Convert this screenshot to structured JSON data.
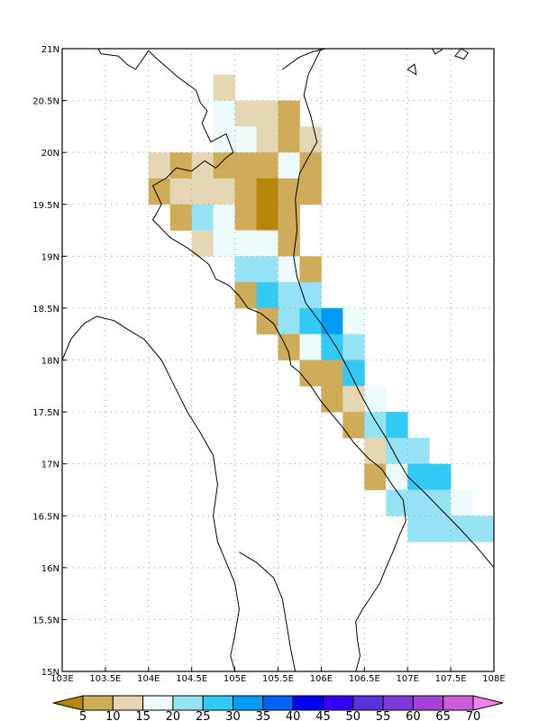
{
  "map": {
    "lon_range": [
      103,
      108
    ],
    "lat_range": [
      15,
      21
    ],
    "grid_lines": true,
    "x_ticks": [
      {
        "value": 103,
        "label": "103E"
      },
      {
        "value": 103.5,
        "label": "103.5E"
      },
      {
        "value": 104,
        "label": "104E"
      },
      {
        "value": 104.5,
        "label": "104.5E"
      },
      {
        "value": 105,
        "label": "105E"
      },
      {
        "value": 105.5,
        "label": "105.5E"
      },
      {
        "value": 106,
        "label": "106E"
      },
      {
        "value": 106.5,
        "label": "106.5E"
      },
      {
        "value": 107,
        "label": "107E"
      },
      {
        "value": 107.5,
        "label": "107.5E"
      },
      {
        "value": 108,
        "label": "108E"
      }
    ],
    "y_ticks": [
      {
        "value": 15,
        "label": "15N"
      },
      {
        "value": 15.5,
        "label": "15.5N"
      },
      {
        "value": 16,
        "label": "16N"
      },
      {
        "value": 16.5,
        "label": "16.5N"
      },
      {
        "value": 17,
        "label": "17N"
      },
      {
        "value": 17.5,
        "label": "17.5N"
      },
      {
        "value": 18,
        "label": "18N"
      },
      {
        "value": 18.5,
        "label": "18.5N"
      },
      {
        "value": 19,
        "label": "19N"
      },
      {
        "value": 19.5,
        "label": "19.5N"
      },
      {
        "value": 20,
        "label": "20N"
      },
      {
        "value": 20.5,
        "label": "20.5N"
      },
      {
        "value": 21,
        "label": "21N"
      }
    ],
    "cell_size_deg": 0.25
  },
  "chart_data": {
    "type": "heatmap",
    "levels": [
      5,
      10,
      15,
      20,
      25,
      30,
      35,
      40,
      45,
      50,
      55,
      60,
      65,
      70
    ],
    "level_labels": [
      "5",
      "10",
      "15",
      "20",
      "25",
      "30",
      "35",
      "40",
      "45",
      "50",
      "55",
      "60",
      "65",
      "70"
    ],
    "bin_colors": [
      "#b8860b",
      "#cfac5a",
      "#e6d7b4",
      "#eefbfd",
      "#96e3f6",
      "#33cbf6",
      "#009cf7",
      "#0063f8",
      "#0000f8",
      "#2e00f4",
      "#5b2fdc",
      "#8038d8",
      "#a540d8",
      "#cc5cd8",
      "#ef83ef"
    ],
    "cell_center_convention": "lon/lat of cell centre, 0.25 degree cells",
    "cells": [
      [
        104.875,
        20.625,
        2
      ],
      [
        104.875,
        20.375,
        3
      ],
      [
        105.125,
        20.375,
        2
      ],
      [
        105.375,
        20.375,
        2
      ],
      [
        105.625,
        20.375,
        1
      ],
      [
        104.875,
        20.125,
        3
      ],
      [
        105.125,
        20.125,
        3
      ],
      [
        105.375,
        20.125,
        2
      ],
      [
        105.625,
        20.125,
        1
      ],
      [
        105.875,
        20.125,
        2
      ],
      [
        104.125,
        19.875,
        2
      ],
      [
        104.375,
        19.875,
        1
      ],
      [
        104.625,
        19.875,
        2
      ],
      [
        104.875,
        19.875,
        1
      ],
      [
        105.125,
        19.875,
        1
      ],
      [
        105.375,
        19.875,
        1
      ],
      [
        105.625,
        19.875,
        3
      ],
      [
        105.875,
        19.875,
        1
      ],
      [
        104.125,
        19.625,
        1
      ],
      [
        104.375,
        19.625,
        2
      ],
      [
        104.625,
        19.625,
        2
      ],
      [
        104.875,
        19.625,
        2
      ],
      [
        105.125,
        19.625,
        1
      ],
      [
        105.375,
        19.625,
        0
      ],
      [
        105.625,
        19.625,
        1
      ],
      [
        105.875,
        19.625,
        1
      ],
      [
        104.375,
        19.375,
        1
      ],
      [
        104.625,
        19.375,
        4
      ],
      [
        104.875,
        19.375,
        3
      ],
      [
        105.125,
        19.375,
        1
      ],
      [
        105.375,
        19.375,
        0
      ],
      [
        105.625,
        19.375,
        1
      ],
      [
        104.625,
        19.125,
        2
      ],
      [
        104.875,
        19.125,
        3
      ],
      [
        105.125,
        19.125,
        3
      ],
      [
        105.375,
        19.125,
        3
      ],
      [
        105.625,
        19.125,
        1
      ],
      [
        105.125,
        18.875,
        4
      ],
      [
        105.375,
        18.875,
        4
      ],
      [
        105.625,
        18.875,
        3
      ],
      [
        105.875,
        18.875,
        1
      ],
      [
        105.125,
        18.625,
        1
      ],
      [
        105.375,
        18.625,
        5
      ],
      [
        105.625,
        18.625,
        4
      ],
      [
        105.875,
        18.625,
        4
      ],
      [
        105.375,
        18.375,
        1
      ],
      [
        105.625,
        18.375,
        4
      ],
      [
        105.875,
        18.375,
        5
      ],
      [
        106.125,
        18.375,
        6
      ],
      [
        106.375,
        18.375,
        3
      ],
      [
        105.625,
        18.125,
        1
      ],
      [
        105.875,
        18.125,
        3
      ],
      [
        106.125,
        18.125,
        5
      ],
      [
        106.375,
        18.125,
        4
      ],
      [
        105.875,
        17.875,
        1
      ],
      [
        106.125,
        17.875,
        1
      ],
      [
        106.375,
        17.875,
        5
      ],
      [
        106.125,
        17.625,
        1
      ],
      [
        106.375,
        17.625,
        2
      ],
      [
        106.625,
        17.625,
        3
      ],
      [
        106.375,
        17.375,
        1
      ],
      [
        106.625,
        17.375,
        4
      ],
      [
        106.875,
        17.375,
        5
      ],
      [
        106.625,
        17.125,
        2
      ],
      [
        106.875,
        17.125,
        4
      ],
      [
        107.125,
        17.125,
        4
      ],
      [
        106.625,
        16.875,
        1
      ],
      [
        106.875,
        16.875,
        3
      ],
      [
        107.125,
        16.875,
        5
      ],
      [
        107.375,
        16.875,
        5
      ],
      [
        106.875,
        16.625,
        4
      ],
      [
        107.125,
        16.625,
        4
      ],
      [
        107.375,
        16.625,
        4
      ],
      [
        107.625,
        16.625,
        3
      ],
      [
        107.125,
        16.375,
        4
      ],
      [
        107.375,
        16.375,
        4
      ],
      [
        107.625,
        16.375,
        4
      ],
      [
        107.875,
        16.375,
        4
      ]
    ]
  },
  "coastline": [
    [
      [
        103.35,
        21.1
      ],
      [
        103.45,
        20.95
      ],
      [
        103.65,
        20.93
      ],
      [
        103.75,
        20.85
      ],
      [
        103.85,
        20.8
      ],
      [
        104.0,
        20.98
      ],
      [
        104.1,
        20.9
      ],
      [
        104.35,
        20.72
      ],
      [
        104.55,
        20.6
      ],
      [
        104.6,
        20.48
      ],
      [
        104.68,
        20.4
      ],
      [
        104.62,
        20.28
      ],
      [
        104.72,
        20.1
      ],
      [
        104.9,
        20.18
      ],
      [
        104.98,
        20.0
      ],
      [
        104.9,
        19.95
      ],
      [
        104.78,
        19.85
      ],
      [
        104.65,
        19.92
      ],
      [
        104.5,
        19.82
      ],
      [
        104.32,
        19.85
      ],
      [
        104.2,
        19.75
      ],
      [
        104.05,
        19.68
      ],
      [
        104.15,
        19.5
      ],
      [
        104.05,
        19.35
      ],
      [
        104.25,
        19.18
      ],
      [
        104.45,
        19.08
      ],
      [
        104.58,
        19.0
      ],
      [
        104.7,
        18.92
      ],
      [
        104.78,
        18.78
      ],
      [
        104.93,
        18.72
      ],
      [
        105.05,
        18.62
      ],
      [
        105.15,
        18.5
      ],
      [
        105.3,
        18.45
      ],
      [
        105.45,
        18.35
      ],
      [
        105.55,
        18.2
      ],
      [
        105.62,
        18.08
      ],
      [
        105.65,
        17.95
      ],
      [
        105.75,
        17.88
      ],
      [
        105.88,
        17.75
      ],
      [
        106.0,
        17.6
      ],
      [
        106.12,
        17.48
      ],
      [
        106.25,
        17.35
      ],
      [
        106.38,
        17.2
      ],
      [
        106.55,
        17.05
      ],
      [
        106.7,
        16.95
      ],
      [
        106.82,
        16.8
      ],
      [
        106.95,
        16.65
      ],
      [
        106.98,
        16.45
      ],
      [
        106.9,
        16.3
      ],
      [
        106.83,
        16.15
      ],
      [
        106.75,
        16.0
      ],
      [
        106.68,
        15.85
      ],
      [
        106.6,
        15.75
      ],
      [
        106.48,
        15.6
      ],
      [
        106.4,
        15.48
      ],
      [
        106.42,
        15.3
      ],
      [
        106.45,
        15.15
      ],
      [
        106.4,
        15.0
      ]
    ],
    [
      [
        105.55,
        20.8
      ],
      [
        105.75,
        20.92
      ],
      [
        105.9,
        20.97
      ],
      [
        106.05,
        21.0
      ],
      [
        106.2,
        21.05
      ]
    ],
    [
      [
        106.0,
        21.0
      ],
      [
        105.85,
        20.75
      ],
      [
        105.8,
        20.55
      ],
      [
        105.88,
        20.35
      ],
      [
        105.95,
        20.1
      ],
      [
        105.85,
        19.95
      ],
      [
        105.75,
        19.8
      ],
      [
        105.7,
        19.55
      ],
      [
        105.72,
        19.25
      ],
      [
        105.68,
        19.0
      ],
      [
        105.72,
        18.8
      ],
      [
        105.82,
        18.55
      ],
      [
        106.0,
        18.35
      ],
      [
        106.18,
        18.12
      ],
      [
        106.32,
        17.9
      ],
      [
        106.45,
        17.68
      ],
      [
        106.6,
        17.45
      ],
      [
        106.75,
        17.25
      ],
      [
        106.88,
        17.05
      ],
      [
        107.0,
        16.88
      ],
      [
        107.2,
        16.72
      ],
      [
        107.4,
        16.55
      ],
      [
        107.6,
        16.38
      ],
      [
        107.8,
        16.2
      ],
      [
        108.0,
        16.0
      ],
      [
        108.1,
        15.9
      ]
    ],
    [
      [
        103.0,
        18.0
      ],
      [
        103.1,
        18.2
      ],
      [
        103.25,
        18.35
      ],
      [
        103.4,
        18.42
      ],
      [
        103.6,
        18.38
      ],
      [
        103.75,
        18.3
      ],
      [
        103.95,
        18.2
      ],
      [
        104.15,
        18.0
      ],
      [
        104.3,
        17.75
      ],
      [
        104.45,
        17.5
      ],
      [
        104.6,
        17.3
      ],
      [
        104.75,
        17.08
      ],
      [
        104.8,
        16.8
      ],
      [
        104.75,
        16.5
      ],
      [
        104.8,
        16.25
      ],
      [
        104.9,
        16.05
      ],
      [
        105.0,
        15.85
      ],
      [
        105.05,
        15.6
      ],
      [
        105.0,
        15.35
      ],
      [
        104.95,
        15.15
      ],
      [
        105.0,
        15.0
      ]
    ],
    [
      [
        105.05,
        16.15
      ],
      [
        105.25,
        16.05
      ],
      [
        105.45,
        15.9
      ],
      [
        105.55,
        15.7
      ],
      [
        105.6,
        15.45
      ],
      [
        105.65,
        15.2
      ],
      [
        105.7,
        15.0
      ]
    ]
  ],
  "islands": [
    [
      [
        107.25,
        21.05
      ],
      [
        107.32,
        20.95
      ],
      [
        107.4,
        20.99
      ],
      [
        107.35,
        21.06
      ]
    ],
    [
      [
        107.55,
        20.93
      ],
      [
        107.65,
        20.9
      ],
      [
        107.7,
        20.96
      ],
      [
        107.62,
        21.0
      ]
    ],
    [
      [
        107.0,
        20.8
      ],
      [
        107.1,
        20.75
      ],
      [
        107.08,
        20.85
      ]
    ]
  ]
}
